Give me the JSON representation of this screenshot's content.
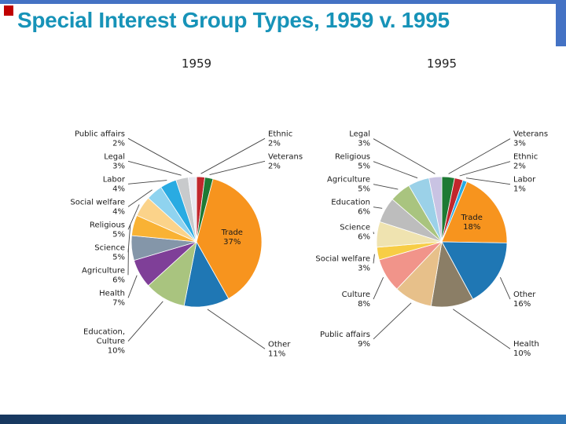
{
  "header": {
    "title": "Special Interest Group Types, 1959 v. 1995"
  },
  "theme": {
    "title-color": "#1793b8",
    "accent-red": "#C00000",
    "band-blue": "#4472C4",
    "footer-dark": "#17375E",
    "footer-blue": "#2E74B5",
    "label-color": "#1a1a1a",
    "leader-color": "#444444"
  },
  "chart_data": [
    {
      "type": "pie",
      "title": "1959",
      "unit": "percent",
      "slices": [
        {
          "label": "Ethnic",
          "pct_label": "2%",
          "value": 2,
          "color": "#C1272D"
        },
        {
          "label": "Veterans",
          "pct_label": "2%",
          "value": 2,
          "color": "#1E7A34"
        },
        {
          "label": "Trade",
          "pct_label": "37%",
          "value": 37,
          "color": "#F7941E",
          "label_inside": true
        },
        {
          "label": "Other",
          "pct_label": "11%",
          "value": 11,
          "color": "#1F77B4"
        },
        {
          "label": "Education, Culture",
          "pct_label": "10%",
          "value": 10,
          "color": "#A9C47F"
        },
        {
          "label": "Health",
          "pct_label": "7%",
          "value": 7,
          "color": "#7F3F98"
        },
        {
          "label": "Agriculture",
          "pct_label": "6%",
          "value": 6,
          "color": "#8496A9"
        },
        {
          "label": "Science",
          "pct_label": "5%",
          "value": 5,
          "color": "#F9B234"
        },
        {
          "label": "Religious",
          "pct_label": "5%",
          "value": 5,
          "color": "#FBD38A"
        },
        {
          "label": "Social welfare",
          "pct_label": "4%",
          "value": 4,
          "color": "#8FD3EF"
        },
        {
          "label": "Labor",
          "pct_label": "4%",
          "value": 4,
          "color": "#29ABE2"
        },
        {
          "label": "Legal",
          "pct_label": "3%",
          "value": 3,
          "color": "#C8CACC"
        },
        {
          "label": "Public affairs",
          "pct_label": "2%",
          "value": 2,
          "color": "#E8E8F0"
        }
      ]
    },
    {
      "type": "pie",
      "title": "1995",
      "unit": "percent",
      "slices": [
        {
          "label": "Veterans",
          "pct_label": "3%",
          "value": 3,
          "color": "#1E7A34"
        },
        {
          "label": "Ethnic",
          "pct_label": "2%",
          "value": 2,
          "color": "#C1272D"
        },
        {
          "label": "Labor",
          "pct_label": "1%",
          "value": 1,
          "color": "#29ABE2"
        },
        {
          "label": "Trade",
          "pct_label": "18%",
          "value": 18,
          "color": "#F7941E",
          "label_inside": true
        },
        {
          "label": "Other",
          "pct_label": "16%",
          "value": 16,
          "color": "#1F77B4"
        },
        {
          "label": "Health",
          "pct_label": "10%",
          "value": 10,
          "color": "#8B7E66"
        },
        {
          "label": "Public affairs",
          "pct_label": "9%",
          "value": 9,
          "color": "#E7C08A"
        },
        {
          "label": "Culture",
          "pct_label": "8%",
          "value": 8,
          "color": "#F1948A"
        },
        {
          "label": "Social welfare",
          "pct_label": "3%",
          "value": 3,
          "color": "#F7CD46"
        },
        {
          "label": "Science",
          "pct_label": "6%",
          "value": 6,
          "color": "#EFE3B0"
        },
        {
          "label": "Education",
          "pct_label": "6%",
          "value": 6,
          "color": "#BDBDBD"
        },
        {
          "label": "Agriculture",
          "pct_label": "5%",
          "value": 5,
          "color": "#A9C47F"
        },
        {
          "label": "Religious",
          "pct_label": "5%",
          "value": 5,
          "color": "#9BD1E8"
        },
        {
          "label": "Legal",
          "pct_label": "3%",
          "value": 3,
          "color": "#C9C3E3"
        }
      ]
    }
  ]
}
